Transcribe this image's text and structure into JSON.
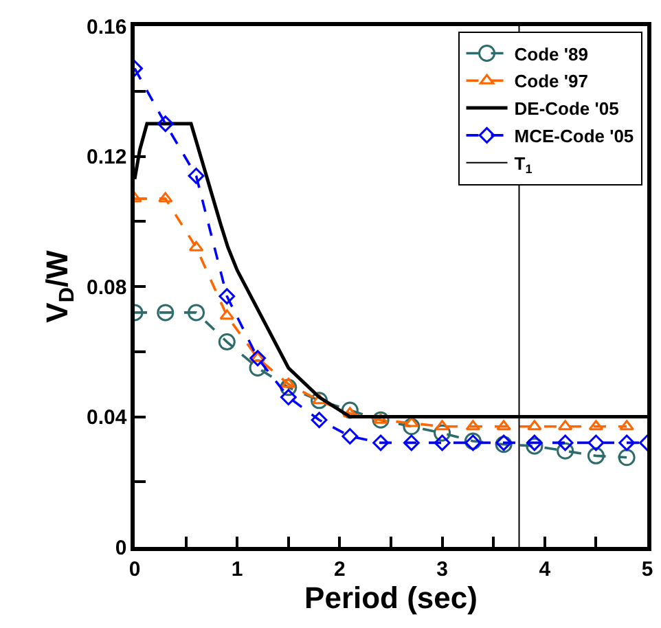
{
  "chart_data": {
    "type": "line",
    "xlabel": "Period (sec)",
    "ylabel": "V$_{D}$/W",
    "xlim": [
      0,
      5
    ],
    "xticks": [
      0,
      {
        "value": 0.5,
        "label": null
      },
      1,
      {
        "value": 1.5,
        "label": null
      },
      2,
      {
        "value": 2.5,
        "label": null
      },
      3,
      {
        "value": 3.5,
        "label": null
      },
      4,
      {
        "value": 4.5,
        "label": null
      },
      5
    ],
    "ylim": [
      0,
      0.16
    ],
    "yticks": [
      0,
      {
        "value": 0.02,
        "label": null
      },
      0.04,
      {
        "value": 0.06,
        "label": null
      },
      0.08,
      {
        "value": 0.1,
        "label": null
      },
      0.12,
      {
        "value": 0.14,
        "label": null
      },
      0.16
    ],
    "grid": false,
    "legend": "top right",
    "series": [
      {
        "name": "Code '89",
        "color": "#2e6b6b",
        "marker": "circle",
        "line_style": "dashed",
        "x": [
          0,
          0.3,
          0.6,
          0.9,
          1.2,
          1.5,
          1.8,
          2.1,
          2.4,
          2.7,
          3.0,
          3.3,
          3.6,
          3.9,
          4.2,
          4.5,
          4.8
        ],
        "values": [
          0.072,
          0.072,
          0.072,
          0.063,
          0.055,
          0.049,
          0.045,
          0.042,
          0.039,
          0.037,
          0.035,
          0.0325,
          0.0315,
          0.031,
          0.0295,
          0.028,
          0.0275
        ]
      },
      {
        "name": "Code '97",
        "color": "#ff6600",
        "marker": "triangle",
        "line_style": "dashed",
        "x": [
          0,
          0.3,
          0.6,
          0.9,
          1.2,
          1.5,
          1.8,
          2.1,
          2.4,
          2.7,
          3.0,
          3.3,
          3.6,
          3.9,
          4.2,
          4.5,
          4.8
        ],
        "values": [
          0.107,
          0.107,
          0.092,
          0.071,
          0.058,
          0.05,
          0.045,
          0.041,
          0.039,
          0.038,
          0.037,
          0.037,
          0.037,
          0.037,
          0.037,
          0.037,
          0.037
        ]
      },
      {
        "name": "DE-Code '05",
        "color": "#000000",
        "marker": "none",
        "line_style": "solid",
        "x": [
          0,
          0.05,
          0.12,
          0.55,
          0.7,
          0.84,
          0.91,
          1.0,
          1.2,
          1.5,
          1.8,
          2.1,
          5
        ],
        "values": [
          0.113,
          0.122,
          0.13,
          0.13,
          0.114,
          0.099,
          0.092,
          0.085,
          0.073,
          0.055,
          0.046,
          0.04,
          0.04
        ]
      },
      {
        "name": "MCE-Code '05",
        "color": "#0000ff",
        "marker": "diamond",
        "line_style": "dashed",
        "x": [
          0,
          0.3,
          0.6,
          0.9,
          1.2,
          1.5,
          1.8,
          2.1,
          2.4,
          2.7,
          3.0,
          3.3,
          3.6,
          3.9,
          4.2,
          4.5,
          4.8,
          5
        ],
        "values": [
          0.147,
          0.13,
          0.114,
          0.077,
          0.058,
          0.046,
          0.039,
          0.034,
          0.032,
          0.032,
          0.032,
          0.032,
          0.032,
          0.032,
          0.032,
          0.032,
          0.032,
          0.032
        ]
      }
    ],
    "ref_lines": [
      {
        "axis": "x",
        "value": 3.75,
        "label": "T$_{1}$",
        "color": "#000000",
        "line_style": "solid"
      }
    ]
  }
}
